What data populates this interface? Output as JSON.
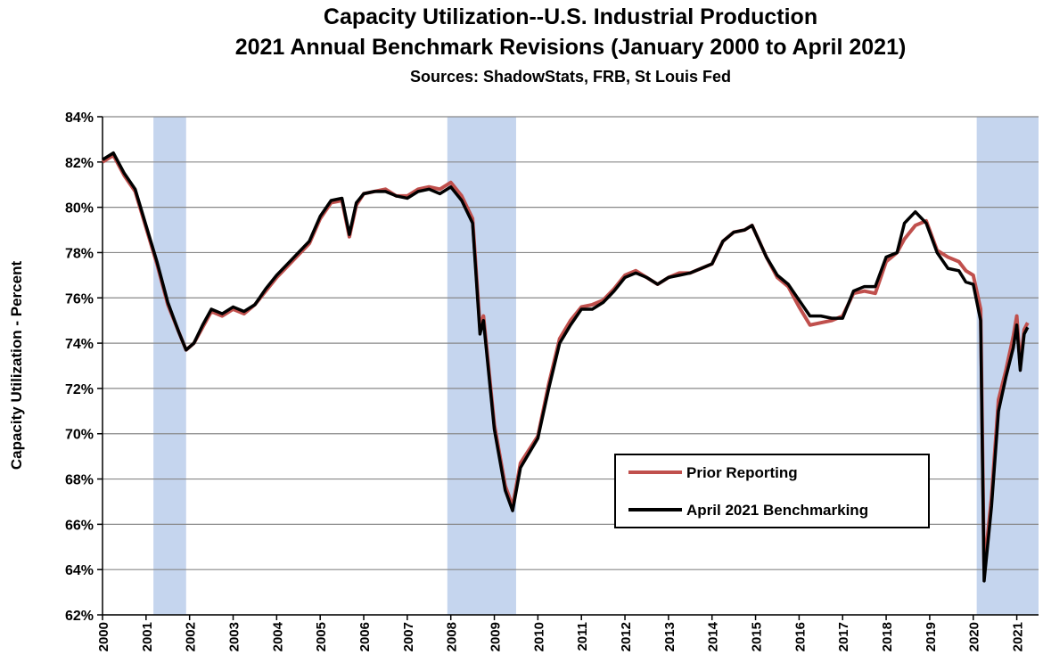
{
  "chart_data": {
    "type": "line",
    "title": "Capacity Utilization--U.S. Industrial Production",
    "subtitle": "2021 Annual Benchmark Revisions (January 2000 to April 2021)",
    "source": "Sources: ShadowStats, FRB, St Louis Fed",
    "y_label": "Capacity Utilization - Percent",
    "xlim": [
      2000,
      2021.5
    ],
    "xticks": [
      2000,
      2001,
      2002,
      2003,
      2004,
      2005,
      2006,
      2007,
      2008,
      2009,
      2010,
      2011,
      2012,
      2013,
      2014,
      2015,
      2016,
      2017,
      2018,
      2019,
      2020,
      2021
    ],
    "ylim": [
      62,
      84
    ],
    "yticks": [
      {
        "value": 62,
        "label": "62%"
      },
      {
        "value": 64,
        "label": "64%"
      },
      {
        "value": 66,
        "label": "66%"
      },
      {
        "value": 68,
        "label": "68%"
      },
      {
        "value": 70,
        "label": "70%"
      },
      {
        "value": 72,
        "label": "72%"
      },
      {
        "value": 74,
        "label": "74%"
      },
      {
        "value": 76,
        "label": "76%"
      },
      {
        "value": 78,
        "label": "78%"
      },
      {
        "value": 80,
        "label": "80%"
      },
      {
        "value": 82,
        "label": "82%"
      },
      {
        "value": 84,
        "label": "84%"
      }
    ],
    "grid": true,
    "shaded_periods": [
      [
        2001.17,
        2001.92
      ],
      [
        2007.92,
        2009.5
      ],
      [
        2020.08,
        2021.5
      ]
    ],
    "shade_color": "#c5d5ee",
    "legend": "lower right",
    "x": [
      2000.0,
      2000.25,
      2000.5,
      2000.75,
      2001.0,
      2001.25,
      2001.5,
      2001.75,
      2001.92,
      2002.1,
      2002.3,
      2002.5,
      2002.75,
      2003.0,
      2003.25,
      2003.5,
      2003.75,
      2004.0,
      2004.25,
      2004.5,
      2004.75,
      2005.0,
      2005.25,
      2005.5,
      2005.67,
      2005.83,
      2006.0,
      2006.25,
      2006.5,
      2006.75,
      2007.0,
      2007.25,
      2007.5,
      2007.75,
      2008.0,
      2008.25,
      2008.5,
      2008.67,
      2008.75,
      2009.0,
      2009.25,
      2009.42,
      2009.6,
      2010.0,
      2010.25,
      2010.5,
      2010.75,
      2011.0,
      2011.25,
      2011.5,
      2011.75,
      2012.0,
      2012.25,
      2012.5,
      2012.75,
      2013.0,
      2013.25,
      2013.5,
      2013.75,
      2014.0,
      2014.25,
      2014.5,
      2014.75,
      2014.92,
      2015.25,
      2015.5,
      2015.75,
      2016.0,
      2016.25,
      2016.5,
      2016.75,
      2017.0,
      2017.25,
      2017.5,
      2017.75,
      2018.0,
      2018.25,
      2018.42,
      2018.67,
      2018.92,
      2019.17,
      2019.42,
      2019.67,
      2019.83,
      2020.0,
      2020.17,
      2020.25,
      2020.42,
      2020.58,
      2020.75,
      2020.92,
      2021.0,
      2021.08,
      2021.17,
      2021.25
    ],
    "series": [
      {
        "name": "Prior Reporting",
        "color": "#c0504d",
        "values": [
          82.0,
          82.3,
          81.4,
          80.7,
          79.1,
          77.5,
          75.7,
          74.5,
          73.7,
          74.0,
          74.7,
          75.4,
          75.2,
          75.5,
          75.3,
          75.7,
          76.3,
          76.9,
          77.4,
          77.9,
          78.4,
          79.5,
          80.2,
          80.3,
          78.7,
          80.1,
          80.6,
          80.7,
          80.8,
          80.5,
          80.5,
          80.8,
          80.9,
          80.8,
          81.1,
          80.5,
          79.5,
          74.7,
          75.2,
          70.4,
          67.7,
          66.8,
          68.7,
          69.9,
          72.2,
          74.2,
          75.0,
          75.6,
          75.7,
          75.9,
          76.4,
          77.0,
          77.2,
          76.9,
          76.6,
          76.9,
          77.1,
          77.1,
          77.3,
          77.5,
          78.5,
          78.9,
          79.0,
          79.2,
          77.8,
          76.9,
          76.5,
          75.6,
          74.8,
          74.9,
          75.0,
          75.2,
          76.2,
          76.3,
          76.2,
          77.6,
          78.0,
          78.6,
          79.2,
          79.4,
          78.1,
          77.8,
          77.6,
          77.2,
          77.0,
          75.5,
          64.0,
          67.2,
          71.5,
          72.8,
          74.3,
          75.2,
          73.0,
          74.6,
          74.9
        ]
      },
      {
        "name": "April 2021 Benchmarking",
        "color": "#000000",
        "values": [
          82.1,
          82.4,
          81.5,
          80.8,
          79.2,
          77.6,
          75.8,
          74.5,
          73.7,
          74.0,
          74.8,
          75.5,
          75.3,
          75.6,
          75.4,
          75.7,
          76.4,
          77.0,
          77.5,
          78.0,
          78.5,
          79.6,
          80.3,
          80.4,
          78.8,
          80.2,
          80.6,
          80.7,
          80.7,
          80.5,
          80.4,
          80.7,
          80.8,
          80.6,
          80.9,
          80.3,
          79.3,
          74.4,
          75.0,
          70.2,
          67.5,
          66.6,
          68.5,
          69.8,
          72.0,
          74.0,
          74.8,
          75.5,
          75.5,
          75.8,
          76.3,
          76.9,
          77.1,
          76.9,
          76.6,
          76.9,
          77.0,
          77.1,
          77.3,
          77.5,
          78.5,
          78.9,
          79.0,
          79.2,
          77.8,
          77.0,
          76.6,
          75.9,
          75.2,
          75.2,
          75.1,
          75.1,
          76.3,
          76.5,
          76.5,
          77.8,
          78.0,
          79.3,
          79.8,
          79.3,
          78.0,
          77.3,
          77.2,
          76.7,
          76.6,
          75.0,
          63.5,
          66.8,
          71.0,
          72.5,
          73.8,
          74.8,
          72.8,
          74.4,
          74.7
        ]
      }
    ]
  }
}
